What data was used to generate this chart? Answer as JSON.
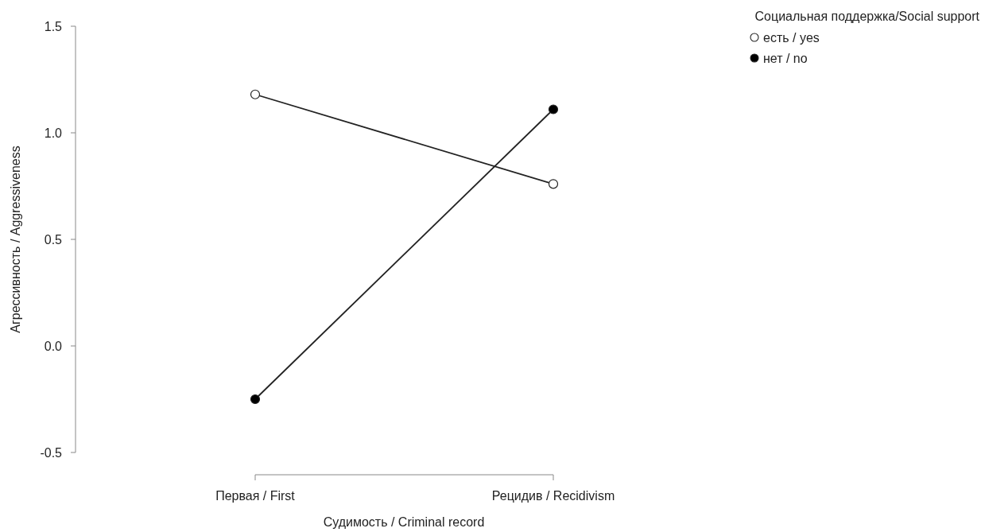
{
  "chart_data": {
    "type": "line",
    "xlabel": "Судимость / Criminal record",
    "ylabel": "Агрессивность / Aggressiveness",
    "legend_title": "Социальная поддержка/Social support",
    "categories": [
      "Первая / First",
      "Рецидив / Recidivism"
    ],
    "series": [
      {
        "name": "есть / yes",
        "color": "#ffffff",
        "values": [
          1.18,
          0.76
        ]
      },
      {
        "name": "нет / no",
        "color": "#000000",
        "values": [
          -0.25,
          1.11
        ]
      }
    ],
    "ylim": [
      -0.5,
      1.5
    ],
    "yticks": [
      {
        "value": -0.5,
        "label": "-0.5"
      },
      {
        "value": 0,
        "label": "0.0"
      },
      {
        "value": 0.5,
        "label": "0.5"
      },
      {
        "value": 1,
        "label": "1.0"
      },
      {
        "value": 1.5,
        "label": "1.5"
      }
    ],
    "grid": false,
    "legend": "top right",
    "marker": "circle",
    "line_style": "solid"
  }
}
